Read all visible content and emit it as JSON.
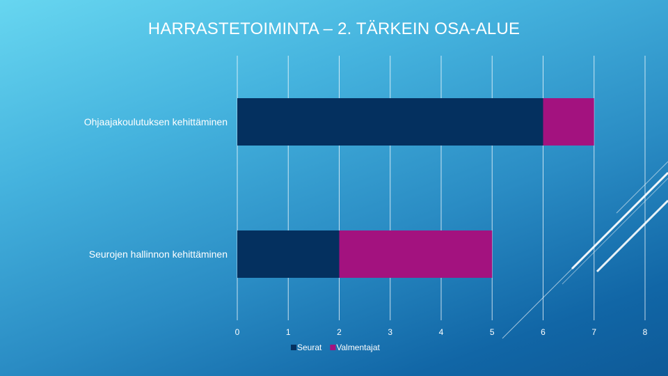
{
  "title": "HARRASTETOIMINTA – 2. TÄRKEIN OSA-ALUE",
  "colors": {
    "seurat": "#04305f",
    "valmentajat": "#a3127f",
    "gridline": "#ffffff",
    "text": "#ffffff"
  },
  "chart_data": {
    "type": "bar",
    "orientation": "horizontal",
    "stacked": true,
    "categories": [
      "Ohjaajakoulutuksen kehittäminen",
      "Seurojen hallinnon kehittäminen"
    ],
    "series": [
      {
        "name": "Seurat",
        "values": [
          6,
          2
        ]
      },
      {
        "name": "Valmentajat",
        "values": [
          1,
          3
        ]
      }
    ],
    "xlim": [
      0,
      8
    ],
    "xticks": [
      "0",
      "1",
      "2",
      "3",
      "4",
      "5",
      "6",
      "7",
      "8"
    ],
    "grid": true,
    "legend": "bottom"
  }
}
